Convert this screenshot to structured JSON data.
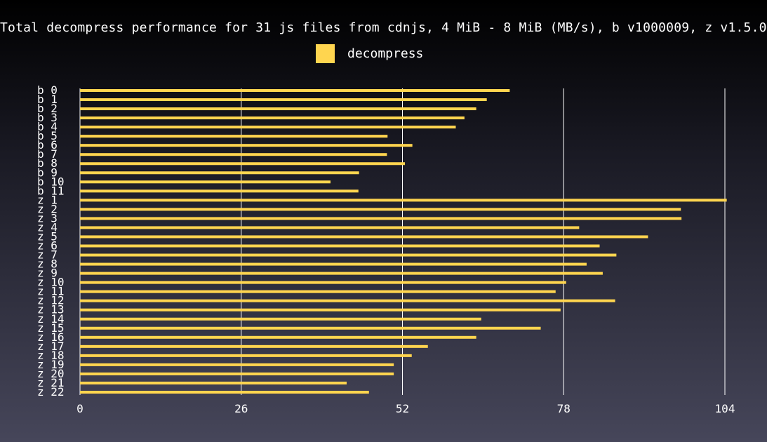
{
  "colors": {
    "bar": "#ffd54f",
    "grid": "#ffffff",
    "text": "#ffffff"
  },
  "chart_data": {
    "type": "bar",
    "orientation": "horizontal",
    "title": "Total decompress performance for 31 js files from cdnjs, 4 MiB - 8 MiB (MB/s), b v1000009, z v1.5.0",
    "legend_position": "top-center",
    "grid": true,
    "xlim": [
      0,
      104
    ],
    "xticks": [
      "0",
      "26",
      "52",
      "78",
      "104"
    ],
    "categories": [
      "b  0",
      "b  1",
      "b  2",
      "b  3",
      "b  4",
      "b  5",
      "b  6",
      "b  7",
      "b  8",
      "b  9",
      "b 10",
      "b 11",
      "z  1",
      "z  2",
      "z  3",
      "z  4",
      "z  5",
      "z  6",
      "z  7",
      "z  8",
      "z  9",
      "z 10",
      "z 11",
      "z 12",
      "z 13",
      "z 14",
      "z 15",
      "z 16",
      "z 17",
      "z 18",
      "z 19",
      "z 20",
      "z 21",
      "z 22"
    ],
    "series": [
      {
        "name": "decompress",
        "values": [
          69.3,
          65.6,
          63.9,
          62.0,
          60.6,
          49.6,
          53.6,
          49.5,
          52.4,
          45.0,
          40.4,
          44.9,
          104.3,
          96.9,
          97.0,
          80.5,
          91.6,
          83.8,
          86.5,
          81.7,
          84.3,
          78.4,
          76.7,
          86.3,
          77.5,
          64.7,
          74.3,
          63.9,
          56.1,
          53.5,
          50.6,
          50.6,
          43.0,
          46.6
        ]
      }
    ]
  }
}
